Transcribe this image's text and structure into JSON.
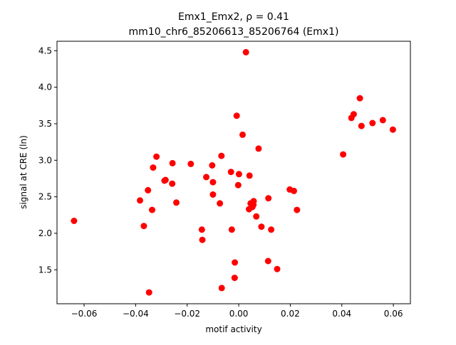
{
  "chart_data": {
    "type": "scatter",
    "title": "Emx1_Emx2, ρ = 0.41",
    "subtitle": "mm10_chr6_85206613_85206764 (Emx1)",
    "xlabel": "motif activity",
    "ylabel": "signal at CRE (ln)",
    "xlim": [
      -0.0705,
      0.0666
    ],
    "ylim": [
      1.035,
      4.63
    ],
    "xticks": [
      {
        "value": -0.06,
        "label": "−0.06"
      },
      {
        "value": -0.04,
        "label": "−0.04"
      },
      {
        "value": -0.02,
        "label": "−0.02"
      },
      {
        "value": 0.0,
        "label": "0.00"
      },
      {
        "value": 0.02,
        "label": "0.02"
      },
      {
        "value": 0.04,
        "label": "0.04"
      },
      {
        "value": 0.06,
        "label": "0.06"
      }
    ],
    "yticks": [
      {
        "value": 1.5,
        "label": "1.5"
      },
      {
        "value": 2.0,
        "label": "2.0"
      },
      {
        "value": 2.5,
        "label": "2.5"
      },
      {
        "value": 3.0,
        "label": "3.0"
      },
      {
        "value": 3.5,
        "label": "3.5"
      },
      {
        "value": 4.0,
        "label": "4.0"
      },
      {
        "value": 4.5,
        "label": "4.5"
      }
    ],
    "grid": false,
    "marker_color": "#ff0000",
    "points": [
      {
        "x": -0.0639,
        "y": 2.17
      },
      {
        "x": -0.0383,
        "y": 2.45
      },
      {
        "x": -0.0368,
        "y": 2.1
      },
      {
        "x": -0.0352,
        "y": 2.59
      },
      {
        "x": -0.0348,
        "y": 1.19
      },
      {
        "x": -0.0336,
        "y": 2.32
      },
      {
        "x": -0.0332,
        "y": 2.9
      },
      {
        "x": -0.0319,
        "y": 3.05
      },
      {
        "x": -0.0288,
        "y": 2.72
      },
      {
        "x": -0.0284,
        "y": 2.73
      },
      {
        "x": -0.0257,
        "y": 2.96
      },
      {
        "x": -0.0258,
        "y": 2.68
      },
      {
        "x": -0.0242,
        "y": 2.42
      },
      {
        "x": -0.0186,
        "y": 2.95
      },
      {
        "x": -0.0143,
        "y": 2.05
      },
      {
        "x": -0.0141,
        "y": 1.91
      },
      {
        "x": -0.0126,
        "y": 2.77
      },
      {
        "x": -0.0103,
        "y": 2.93
      },
      {
        "x": -0.01,
        "y": 2.7
      },
      {
        "x": -0.01,
        "y": 2.53
      },
      {
        "x": -0.0073,
        "y": 2.41
      },
      {
        "x": -0.0067,
        "y": 3.06
      },
      {
        "x": -0.0066,
        "y": 1.25
      },
      {
        "x": -0.003,
        "y": 2.84
      },
      {
        "x": -0.0027,
        "y": 2.05
      },
      {
        "x": -0.0015,
        "y": 1.6
      },
      {
        "x": -0.0016,
        "y": 1.39
      },
      {
        "x": -0.0008,
        "y": 3.61
      },
      {
        "x": 0.0001,
        "y": 2.81
      },
      {
        "x": -0.0002,
        "y": 2.66
      },
      {
        "x": 0.0015,
        "y": 3.35
      },
      {
        "x": 0.0028,
        "y": 4.48
      },
      {
        "x": 0.004,
        "y": 2.33
      },
      {
        "x": 0.0042,
        "y": 2.79
      },
      {
        "x": 0.0046,
        "y": 2.41
      },
      {
        "x": 0.0053,
        "y": 2.36
      },
      {
        "x": 0.0057,
        "y": 2.39
      },
      {
        "x": 0.0058,
        "y": 2.44
      },
      {
        "x": 0.0068,
        "y": 2.23
      },
      {
        "x": 0.0077,
        "y": 3.16
      },
      {
        "x": 0.0088,
        "y": 2.09
      },
      {
        "x": 0.0114,
        "y": 1.62
      },
      {
        "x": 0.0115,
        "y": 2.48
      },
      {
        "x": 0.0126,
        "y": 2.05
      },
      {
        "x": 0.0149,
        "y": 1.51
      },
      {
        "x": 0.0198,
        "y": 2.6
      },
      {
        "x": 0.0214,
        "y": 2.58
      },
      {
        "x": 0.0226,
        "y": 2.32
      },
      {
        "x": 0.0405,
        "y": 3.08
      },
      {
        "x": 0.0437,
        "y": 3.58
      },
      {
        "x": 0.0446,
        "y": 3.63
      },
      {
        "x": 0.047,
        "y": 3.85
      },
      {
        "x": 0.0476,
        "y": 3.47
      },
      {
        "x": 0.0519,
        "y": 3.51
      },
      {
        "x": 0.0559,
        "y": 3.55
      },
      {
        "x": 0.0598,
        "y": 3.42
      }
    ]
  }
}
